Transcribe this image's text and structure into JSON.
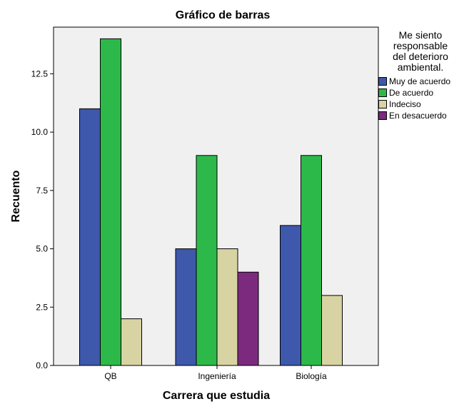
{
  "chart_data": {
    "type": "bar",
    "title": "Gráfico de barras",
    "xlabel": "Carrera que estudia",
    "ylabel": "Recuento",
    "categories": [
      "QB",
      "Ingeniería",
      "Biología"
    ],
    "ylim": [
      0,
      14.5
    ],
    "yticks": [
      "0.0",
      "2.5",
      "5.0",
      "7.5",
      "10.0",
      "12.5"
    ],
    "legend_title": [
      "Me siento",
      "responsable",
      "del deterioro",
      "ambiental."
    ],
    "legend_position": "right",
    "grid": false,
    "plot_background": "#f0f0f0",
    "series": [
      {
        "name": "Muy de acuerdo",
        "color": "#3e58ac",
        "values": [
          11,
          5,
          6
        ]
      },
      {
        "name": "De acuerdo",
        "color": "#2db94a",
        "values": [
          14,
          9,
          9
        ]
      },
      {
        "name": "Indeciso",
        "color": "#d8d3a2",
        "values": [
          2,
          5,
          3
        ]
      },
      {
        "name": "En desacuerdo",
        "color": "#7b2a7e",
        "values": [
          null,
          4,
          null
        ]
      }
    ]
  }
}
